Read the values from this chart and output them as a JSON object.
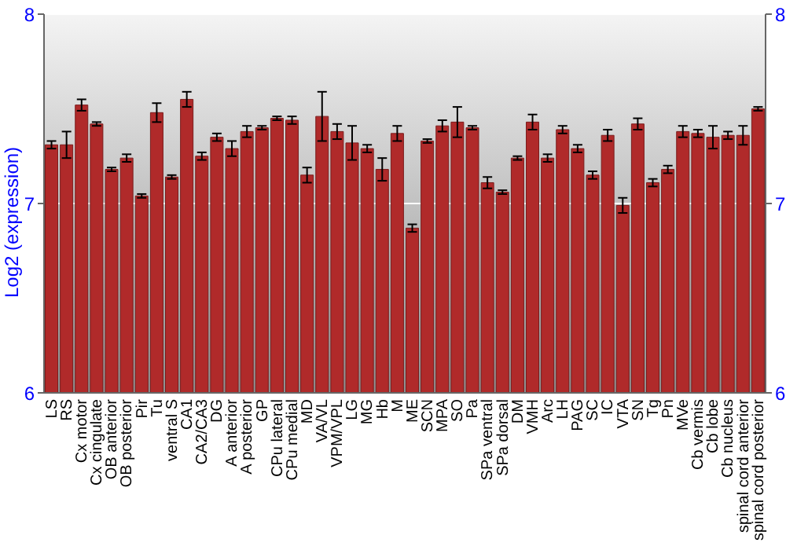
{
  "chart_data": {
    "type": "bar",
    "ylabel": "Log2 (expression)",
    "categories": [
      "LS",
      "RS",
      "Cx motor",
      "Cx cingulate",
      "OB anterior",
      "OB posterior",
      "Pir",
      "Tu",
      "ventral S",
      "CA1",
      "CA2/CA3",
      "DG",
      "A anterior",
      "A posterior",
      "GP",
      "CPu lateral",
      "CPu medial",
      "MD",
      "VA/VL",
      "VPM/VPL",
      "LG",
      "MG",
      "Hb",
      "M",
      "ME",
      "SCN",
      "MPA",
      "SO",
      "Pa",
      "SPa ventral",
      "SPa dorsal",
      "DM",
      "VMH",
      "Arc",
      "LH",
      "PAG",
      "SC",
      "IC",
      "VTA",
      "SN",
      "Tg",
      "Pn",
      "MVe",
      "Cb vermis",
      "Cb lobe",
      "Cb nucleus",
      "spinal cord anterior",
      "spinal cord posterior"
    ],
    "values": [
      7.31,
      7.31,
      7.52,
      7.42,
      7.18,
      7.24,
      7.04,
      7.48,
      7.14,
      7.55,
      7.25,
      7.35,
      7.29,
      7.38,
      7.4,
      7.45,
      7.44,
      7.15,
      7.46,
      7.38,
      7.32,
      7.29,
      7.18,
      7.37,
      6.87,
      7.33,
      7.41,
      7.43,
      7.4,
      7.11,
      7.06,
      7.24,
      7.43,
      7.24,
      7.39,
      7.29,
      7.15,
      7.36,
      6.99,
      7.42,
      7.11,
      7.18,
      7.38,
      7.37,
      7.35,
      7.36,
      7.36,
      7.5
    ],
    "errors": [
      0.02,
      0.07,
      0.03,
      0.01,
      0.01,
      0.02,
      0.01,
      0.05,
      0.01,
      0.04,
      0.02,
      0.02,
      0.04,
      0.03,
      0.01,
      0.01,
      0.02,
      0.04,
      0.13,
      0.04,
      0.09,
      0.02,
      0.06,
      0.04,
      0.02,
      0.01,
      0.03,
      0.08,
      0.01,
      0.03,
      0.01,
      0.01,
      0.04,
      0.02,
      0.02,
      0.02,
      0.02,
      0.03,
      0.04,
      0.03,
      0.02,
      0.02,
      0.03,
      0.02,
      0.06,
      0.02,
      0.05,
      0.01
    ],
    "color": "#b02a2a",
    "ylim": [
      6,
      8
    ],
    "yticks": [
      6,
      7,
      8
    ],
    "y2lim": [
      6,
      8
    ],
    "y2ticks": [
      6,
      7,
      8
    ],
    "grid": "y"
  }
}
